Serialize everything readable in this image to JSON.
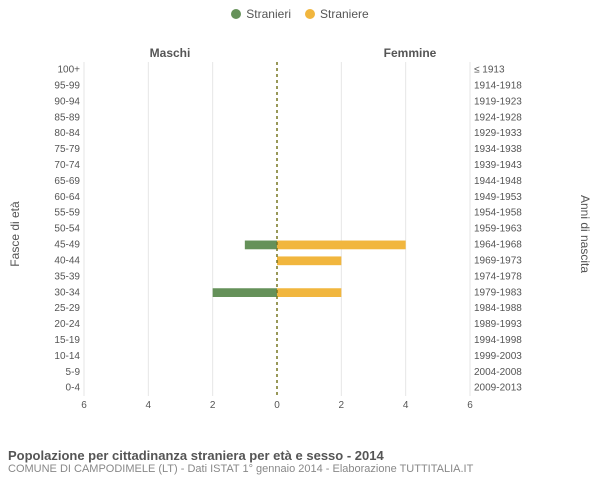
{
  "legend": [
    {
      "label": "Stranieri",
      "color": "#659159"
    },
    {
      "label": "Straniere",
      "color": "#f1b63e"
    }
  ],
  "headers": {
    "maschi": "Maschi",
    "femmine": "Femmine"
  },
  "axis_titles": {
    "left": "Fasce di età",
    "right": "Anni di nascita"
  },
  "chart": {
    "type": "population-pyramid",
    "background_color": "#ffffff",
    "series_colors": {
      "male": "#659159",
      "female": "#f1b63e"
    },
    "grid_color": "#e6e6e6",
    "center_line_color": "#777722",
    "center_line_dash": "3,3",
    "bar_height_ratio": 0.55,
    "x_max": 6,
    "x_ticks": [
      6,
      4,
      2,
      0,
      2,
      4,
      6
    ],
    "tick_label_fontsize": 10,
    "age_groups": [
      "0-4",
      "5-9",
      "10-14",
      "15-19",
      "20-24",
      "25-29",
      "30-34",
      "35-39",
      "40-44",
      "45-49",
      "50-54",
      "55-59",
      "60-64",
      "65-69",
      "70-74",
      "75-79",
      "80-84",
      "85-89",
      "90-94",
      "95-99",
      "100+"
    ],
    "birth_years": [
      "2009-2013",
      "2004-2008",
      "1999-2003",
      "1994-1998",
      "1989-1993",
      "1984-1988",
      "1979-1983",
      "1974-1978",
      "1969-1973",
      "1964-1968",
      "1959-1963",
      "1954-1958",
      "1949-1953",
      "1944-1948",
      "1939-1943",
      "1934-1938",
      "1929-1933",
      "1924-1928",
      "1919-1923",
      "1914-1918",
      "≤ 1913"
    ],
    "male": [
      0,
      0,
      0,
      0,
      0,
      0,
      2,
      0,
      0,
      1,
      0,
      0,
      0,
      0,
      0,
      0,
      0,
      0,
      0,
      0,
      0
    ],
    "female": [
      0,
      0,
      0,
      0,
      0,
      0,
      2,
      0,
      2,
      4,
      0,
      0,
      0,
      0,
      0,
      0,
      0,
      0,
      0,
      0,
      0
    ]
  },
  "footer": {
    "title": "Popolazione per cittadinanza straniera per età e sesso - 2014",
    "subtitle": "COMUNE DI CAMPODIMELE (LT) - Dati ISTAT 1° gennaio 2014 - Elaborazione TUTTITALIA.IT"
  }
}
